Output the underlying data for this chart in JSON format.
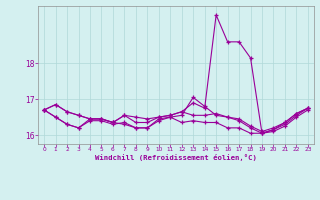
{
  "background_color": "#d4f0f0",
  "grid_color": "#b0d8d8",
  "line_color": "#990099",
  "xlabel": "Windchill (Refroidissement éolien,°C)",
  "x": [
    0,
    1,
    2,
    3,
    4,
    5,
    6,
    7,
    8,
    9,
    10,
    11,
    12,
    13,
    14,
    15,
    16,
    17,
    18,
    19,
    20,
    21,
    22,
    23
  ],
  "series_spike": [
    16.7,
    16.85,
    16.65,
    16.55,
    16.45,
    16.45,
    16.35,
    16.55,
    16.35,
    16.35,
    16.5,
    16.55,
    16.65,
    16.9,
    16.75,
    19.35,
    18.6,
    18.6,
    18.15,
    16.05,
    16.15,
    16.35,
    16.6,
    16.75
  ],
  "series_flat": [
    16.7,
    16.85,
    16.65,
    16.55,
    16.45,
    16.45,
    16.35,
    16.55,
    16.5,
    16.45,
    16.5,
    16.55,
    16.65,
    16.55,
    16.55,
    16.6,
    16.5,
    16.45,
    16.25,
    16.1,
    16.2,
    16.35,
    16.6,
    16.75
  ],
  "series_mid": [
    16.7,
    16.5,
    16.3,
    16.2,
    16.45,
    16.45,
    16.35,
    16.3,
    16.2,
    16.2,
    16.45,
    16.5,
    16.55,
    17.05,
    16.8,
    16.55,
    16.5,
    16.4,
    16.2,
    16.05,
    16.15,
    16.3,
    16.55,
    16.75
  ],
  "series_low": [
    16.7,
    16.5,
    16.3,
    16.2,
    16.4,
    16.4,
    16.3,
    16.35,
    16.2,
    16.2,
    16.4,
    16.5,
    16.35,
    16.4,
    16.35,
    16.35,
    16.2,
    16.2,
    16.05,
    16.05,
    16.1,
    16.25,
    16.5,
    16.7
  ],
  "ylim": [
    15.75,
    19.6
  ],
  "yticks": [
    16,
    17,
    18
  ],
  "xticks": [
    0,
    1,
    2,
    3,
    4,
    5,
    6,
    7,
    8,
    9,
    10,
    11,
    12,
    13,
    14,
    15,
    16,
    17,
    18,
    19,
    20,
    21,
    22,
    23
  ],
  "xtick_labels": [
    "0",
    "1",
    "2",
    "3",
    "4",
    "5",
    "6",
    "7",
    "8",
    "9",
    "10",
    "11",
    "12",
    "13",
    "14",
    "15",
    "16",
    "17",
    "18",
    "19",
    "20",
    "21",
    "22",
    "23"
  ]
}
